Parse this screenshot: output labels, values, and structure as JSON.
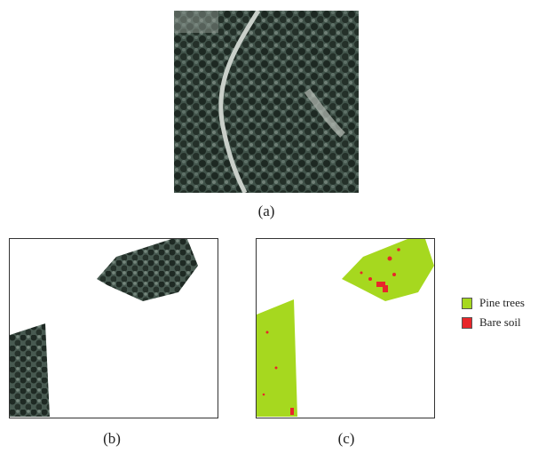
{
  "panels": {
    "a": {
      "caption": "(a)"
    },
    "b": {
      "caption": "(b)"
    },
    "c": {
      "caption": "(c)"
    }
  },
  "legend": {
    "items": [
      {
        "label": "Pine trees",
        "color": "#a6d81f"
      },
      {
        "label": "Bare soil",
        "color": "#e8262a"
      }
    ]
  },
  "colors": {
    "forest_dark": "#1f2a24",
    "forest_mid": "#3d4f45",
    "road": "#c9cfc9",
    "pine": "#a6d81f",
    "soil": "#e8262a"
  }
}
